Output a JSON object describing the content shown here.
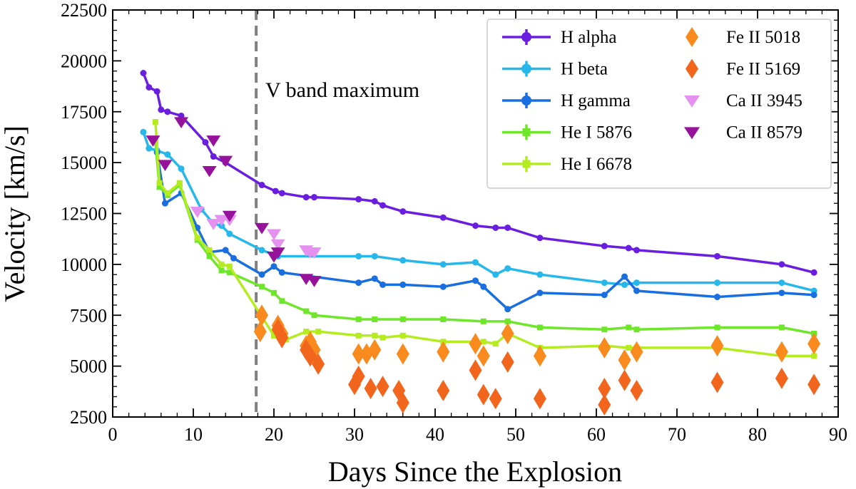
{
  "chart_data": {
    "type": "line",
    "xlabel": "Days Since the Explosion",
    "ylabel": "Velocity [km/s]",
    "xlim": [
      0,
      90
    ],
    "ylim": [
      2500,
      22500
    ],
    "xticks": [
      0,
      10,
      20,
      30,
      40,
      50,
      60,
      70,
      80,
      90
    ],
    "yticks": [
      2500,
      5000,
      7500,
      10000,
      12500,
      15000,
      17500,
      20000,
      22500
    ],
    "grid": false,
    "legend_position": "top-right",
    "legend_columns": 2,
    "vline": {
      "x": 17.8,
      "label": "V band maximum",
      "color": "#808080",
      "style": "dashed"
    },
    "series": [
      {
        "name": "H alpha",
        "color": "#6a1fe0",
        "marker": "circle",
        "line": true,
        "x": [
          3.8,
          4.5,
          5.5,
          6.0,
          6.8,
          8.5,
          11.5,
          12.5,
          14.0,
          18.5,
          20.2,
          21.0,
          24.0,
          25.0,
          30.5,
          32.5,
          33.5,
          36.0,
          41.0,
          45.0,
          47.5,
          49.0,
          53.0,
          61.0,
          64.0,
          65.0,
          75.0,
          83.0,
          87.0
        ],
        "y": [
          19400,
          18700,
          18500,
          17600,
          17500,
          17300,
          16000,
          15300,
          15000,
          13900,
          13600,
          13500,
          13300,
          13300,
          13200,
          13100,
          12900,
          12600,
          12300,
          11900,
          11800,
          11800,
          11300,
          10900,
          10800,
          10700,
          10400,
          10000,
          9600
        ]
      },
      {
        "name": "H beta",
        "color": "#26b8ea",
        "marker": "circle",
        "line": true,
        "x": [
          3.8,
          4.5,
          5.5,
          6.8,
          8.5,
          11.0,
          12.5,
          13.5,
          14.5,
          18.5,
          20.5,
          30.5,
          32.5,
          36.0,
          41.0,
          45.0,
          47.5,
          49.0,
          53.0,
          61.0,
          63.5,
          65.0,
          75.0,
          83.0,
          87.0
        ],
        "y": [
          16500,
          15700,
          15600,
          15400,
          14700,
          12700,
          12000,
          11900,
          11500,
          10700,
          10400,
          10400,
          10400,
          10200,
          10000,
          10100,
          9500,
          9800,
          9500,
          9100,
          9000,
          9100,
          9100,
          9100,
          8700
        ]
      },
      {
        "name": "H gamma",
        "color": "#1a6fe0",
        "marker": "circle",
        "line": true,
        "x": [
          5.5,
          6.5,
          8.5,
          10.5,
          12.0,
          14.0,
          15.0,
          18.5,
          20.0,
          21.0,
          30.5,
          32.5,
          33.5,
          36.0,
          41.0,
          45.0,
          46.0,
          49.0,
          53.0,
          61.0,
          63.5,
          65.0,
          75.0,
          83.0,
          87.0
        ],
        "y": [
          15500,
          13000,
          13500,
          11800,
          10600,
          10700,
          10300,
          9500,
          9900,
          9600,
          9100,
          9300,
          9000,
          9000,
          8900,
          9200,
          8900,
          7800,
          8600,
          8500,
          9400,
          8700,
          8400,
          8600,
          8500
        ]
      },
      {
        "name": "He I 5876",
        "color": "#6ee62a",
        "marker": "square",
        "line": true,
        "x": [
          5.3,
          5.8,
          6.8,
          8.3,
          10.5,
          12.0,
          13.5,
          14.5,
          18.5,
          20.0,
          21.0,
          24.0,
          25.0,
          30.5,
          32.5,
          36.0,
          41.0,
          46.0,
          49.0,
          53.0,
          61.0,
          64.0,
          65.0,
          75.0,
          83.0,
          87.0
        ],
        "y": [
          16000,
          13800,
          13400,
          13900,
          11200,
          10400,
          9700,
          9600,
          8900,
          8600,
          8200,
          7700,
          7500,
          7300,
          7300,
          7300,
          7300,
          7200,
          7200,
          6900,
          6800,
          6900,
          6800,
          6900,
          6900,
          6600
        ]
      },
      {
        "name": "He I 6678",
        "color": "#b4ec20",
        "marker": "square",
        "line": true,
        "x": [
          5.3,
          5.8,
          6.8,
          8.3,
          10.5,
          12.0,
          13.5,
          14.5,
          20.0,
          21.5,
          24.0,
          25.5,
          30.5,
          32.5,
          33.5,
          36.0,
          41.0,
          46.0,
          47.5,
          49.0,
          53.0,
          61.0,
          64.0,
          65.0,
          75.0,
          83.0,
          87.0
        ],
        "y": [
          17000,
          14000,
          13500,
          14000,
          11300,
          10700,
          10000,
          9900,
          6500,
          6300,
          6700,
          6700,
          6500,
          6500,
          6400,
          6500,
          6200,
          6200,
          6100,
          6600,
          5900,
          6000,
          5900,
          5900,
          5900,
          5500,
          5500
        ]
      },
      {
        "name": "Fe II 5018",
        "color": "#f88a1e",
        "marker": "diamond",
        "line": false,
        "x": [
          18.5,
          18.3,
          20.5,
          21.0,
          24.0,
          24.5,
          25.0,
          30.5,
          31.5,
          32.5,
          36.0,
          41.0,
          45.0,
          46.0,
          49.0,
          53.0,
          61.0,
          63.5,
          65.0,
          75.0,
          83.0,
          87.0
        ],
        "y": [
          7500,
          6700,
          7000,
          6600,
          6000,
          6200,
          5800,
          5600,
          5600,
          5800,
          5600,
          5700,
          6100,
          5500,
          6600,
          5500,
          5900,
          5300,
          5700,
          6000,
          5700,
          6100
        ]
      },
      {
        "name": "Fe II 5169",
        "color": "#f2651c",
        "marker": "diamond",
        "line": false,
        "x": [
          20.5,
          21.0,
          24.0,
          24.5,
          25.5,
          30.0,
          30.5,
          32.0,
          33.5,
          35.5,
          36.0,
          41.0,
          45.0,
          46.0,
          47.5,
          49.0,
          53.0,
          61.0,
          61.0,
          63.5,
          65.0,
          75.0,
          83.0,
          87.0
        ],
        "y": [
          6800,
          6400,
          5800,
          5500,
          5100,
          4100,
          4500,
          3900,
          4000,
          3800,
          3200,
          3800,
          4800,
          3600,
          3400,
          5200,
          3400,
          3900,
          3100,
          4300,
          3800,
          4200,
          4400,
          4100
        ]
      },
      {
        "name": "Ca II 3945",
        "color": "#e591f0",
        "marker": "triangle-down",
        "line": false,
        "x": [
          10.5,
          12.5,
          13.5,
          14.5,
          18.5,
          20.0,
          20.5,
          24.0,
          24.5,
          25.0
        ],
        "y": [
          12600,
          12000,
          12200,
          12200,
          11800,
          11500,
          11000,
          10700,
          10600,
          10600
        ]
      },
      {
        "name": "Ca II 8579",
        "color": "#96129a",
        "marker": "triangle-down",
        "line": false,
        "x": [
          5.0,
          6.5,
          8.5,
          12.5,
          12.0,
          14.0,
          14.5,
          18.5,
          20.0,
          20.5,
          24.0,
          25.0
        ],
        "y": [
          16100,
          14900,
          17000,
          16100,
          14600,
          15100,
          12400,
          11800,
          10400,
          10600,
          9300,
          9200
        ]
      }
    ]
  }
}
